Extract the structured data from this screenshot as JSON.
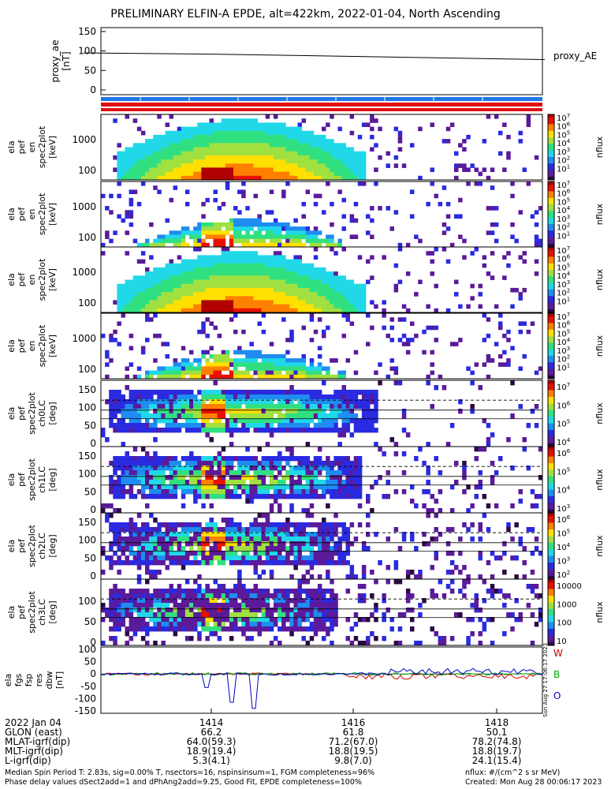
{
  "title": "PRELIMINARY ELFIN-A EPDE, alt=422km, 2022-01-04, North Ascending",
  "proxy_panel": {
    "ylabel_lines": [
      "proxy_ae",
      "[nT]"
    ],
    "yticks": [
      "150",
      "100",
      "50",
      "0"
    ],
    "legend": "proxy_AE",
    "series": [
      {
        "t": 1412.2,
        "v": 95
      },
      {
        "t": 1414.0,
        "v": 92
      },
      {
        "t": 1416.0,
        "v": 86
      },
      {
        "t": 1418.0,
        "v": 80
      },
      {
        "t": 1418.7,
        "v": 78
      }
    ]
  },
  "energy_panels": [
    {
      "ylabel_lines": [
        "ela",
        "pef",
        "en",
        "spec2plot",
        "[keV]"
      ],
      "yticks": [
        "1000",
        "100"
      ],
      "kind": "omni"
    },
    {
      "ylabel_lines": [
        "ela",
        "pef",
        "en",
        "spec2plot",
        "[keV]"
      ],
      "yticks": [
        "1000",
        "100"
      ],
      "kind": "weak"
    },
    {
      "ylabel_lines": [
        "ela",
        "pef",
        "en",
        "spec2plot",
        "[keV]"
      ],
      "yticks": [
        "1000",
        "100"
      ],
      "kind": "omni"
    },
    {
      "ylabel_lines": [
        "ela",
        "pef",
        "en",
        "spec2plot",
        "[keV]"
      ],
      "yticks": [
        "1000",
        "100"
      ],
      "kind": "weak"
    }
  ],
  "pitch_panels": [
    {
      "ylabel_lines": [
        "ela",
        "pef",
        "spec2plot",
        "ch0LC",
        "[deg]"
      ],
      "yticks": [
        "150",
        "100",
        "50",
        "0"
      ],
      "cbar_ticks": [
        "10^7",
        "10^6",
        "10^5",
        "10^4"
      ]
    },
    {
      "ylabel_lines": [
        "ela",
        "pef",
        "spec2plot",
        "ch1LC",
        "[deg]"
      ],
      "yticks": [
        "150",
        "100",
        "50",
        "0"
      ],
      "cbar_ticks": [
        "10^6",
        "10^5",
        "10^4",
        "10^3"
      ]
    },
    {
      "ylabel_lines": [
        "ela",
        "pef",
        "spec2plot",
        "ch2LC",
        "[deg]"
      ],
      "yticks": [
        "150",
        "100",
        "50",
        "0"
      ],
      "cbar_ticks": [
        "10^6",
        "10^5",
        "10^4",
        "10^3",
        "10^2"
      ]
    },
    {
      "ylabel_lines": [
        "ela",
        "pef",
        "spec2plot",
        "ch3LC",
        "[deg]"
      ],
      "yticks": [
        "100",
        "50",
        "0"
      ],
      "cbar_ticks": [
        "10000",
        "1000",
        "100",
        "10"
      ]
    }
  ],
  "energy_cbar_ticks": [
    "10^7",
    "10^6",
    "10^5",
    "10^4",
    "10^3",
    "10^2",
    "10^1"
  ],
  "cbar_label": "nflux",
  "mag_panel": {
    "ylabel_lines": [
      "ela",
      "fgs",
      "fsp",
      "res",
      "dbw",
      "[nT]"
    ],
    "yticks": [
      "100",
      "50",
      "0",
      "-50",
      "-100",
      "-150"
    ],
    "components": [
      {
        "name": "W",
        "color": "#cc0000"
      },
      {
        "name": "B",
        "color": "#00aa00"
      },
      {
        "name": "O",
        "color": "#0000cc"
      }
    ],
    "side_note": "Sun Aug 27 17:06:17 2023"
  },
  "ephemeris": {
    "rows": [
      {
        "label": "2022 Jan 04",
        "values": [
          "1414",
          "1416",
          "1418"
        ]
      },
      {
        "label": "GLON (east)",
        "values": [
          "66.2",
          "61.8",
          "50.1"
        ]
      },
      {
        "label": "MLAT-igrf(dip)",
        "values": [
          "64.0(59.3)",
          "71.2(67.0)",
          "78.2(74.8)"
        ]
      },
      {
        "label": "MLT-igrf(dip)",
        "values": [
          "18.9(19.4)",
          "18.8(19.5)",
          "18.8(19.7)"
        ]
      },
      {
        "label": "L-igrf(dip)",
        "values": [
          "5.3(4.1)",
          "9.8(7.0)",
          "24.1(15.4)"
        ]
      }
    ]
  },
  "footer": {
    "left_line1": "Median Spin Period T: 2.83s, sig=0.00% T, nsectors=16, nspinsinsum=1, FGM completeness=96%",
    "left_line2": "Phase delay values dSect2add=1 and dPhAng2add=9.25, Good Fit, EPDE completeness=100%",
    "right_line1": "nflux: #/(cm^2 s sr MeV)",
    "right_line2": "Created: Mon Aug 28 00:06:17 2023"
  },
  "colors": {
    "status_blue": "#1e78e6",
    "status_red": "#e01010",
    "palette": [
      "#ffffff",
      "#2a0a40",
      "#5a1a9a",
      "#2a2ae0",
      "#1e8cf0",
      "#20d8e8",
      "#30e080",
      "#a0e040",
      "#ffe000",
      "#ff8000",
      "#e81000",
      "#b00000"
    ]
  }
}
